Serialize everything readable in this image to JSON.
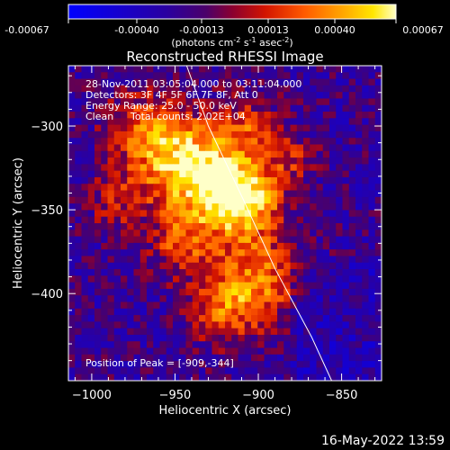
{
  "colorbar": {
    "ticks": [
      "-0.00067",
      "-0.00040",
      "-0.00013",
      "0.00013",
      "0.00040",
      "0.00067"
    ],
    "unit_text": "(photons cm",
    "unit_exp1": "-2",
    "unit_s": " s",
    "unit_exp2": "-1",
    "unit_asec": " asec",
    "unit_exp3": "-2",
    "unit_close": ")"
  },
  "chart_data": {
    "type": "heatmap",
    "title": "Reconstructed RHESSI Image",
    "xlabel": "Heliocentric X (arcsec)",
    "ylabel": "Heliocentric Y (arcsec)",
    "xlim": [
      -1014,
      -826
    ],
    "ylim": [
      -452,
      -264
    ],
    "xticks": [
      -1000,
      -950,
      -900,
      -850
    ],
    "yticks": [
      -300,
      -350,
      -400
    ],
    "xtick_labels": [
      "−1000",
      "−950",
      "−900",
      "−850"
    ],
    "ytick_labels": [
      "−300",
      "−350",
      "−400"
    ],
    "colorscale_range": [
      -0.00067,
      0.00067
    ],
    "colormap": "red-temperature",
    "peak_position": [
      -909,
      -344
    ],
    "limb_curve": [
      [
        -943,
        -264
      ],
      [
        -930,
        -300
      ],
      [
        -909,
        -344
      ],
      [
        -890,
        -385
      ],
      [
        -868,
        -426
      ],
      [
        -856,
        -452
      ]
    ],
    "annotations": {
      "date_line": "28-Nov-2011 03:05:04.000 to 03:11:04.000",
      "detectors_line": "Detectors: 3F 4F 5F 6F 7F 8F, Att 0",
      "energy_line": "Energy Range: 25.0 - 50.0 keV",
      "clean_label": "Clean",
      "counts_line": "Total counts: 2.02E+04",
      "peak_line": "Position of Peak = [-909,-344]"
    }
  },
  "footer": {
    "timestamp": "16-May-2022 13:59"
  }
}
